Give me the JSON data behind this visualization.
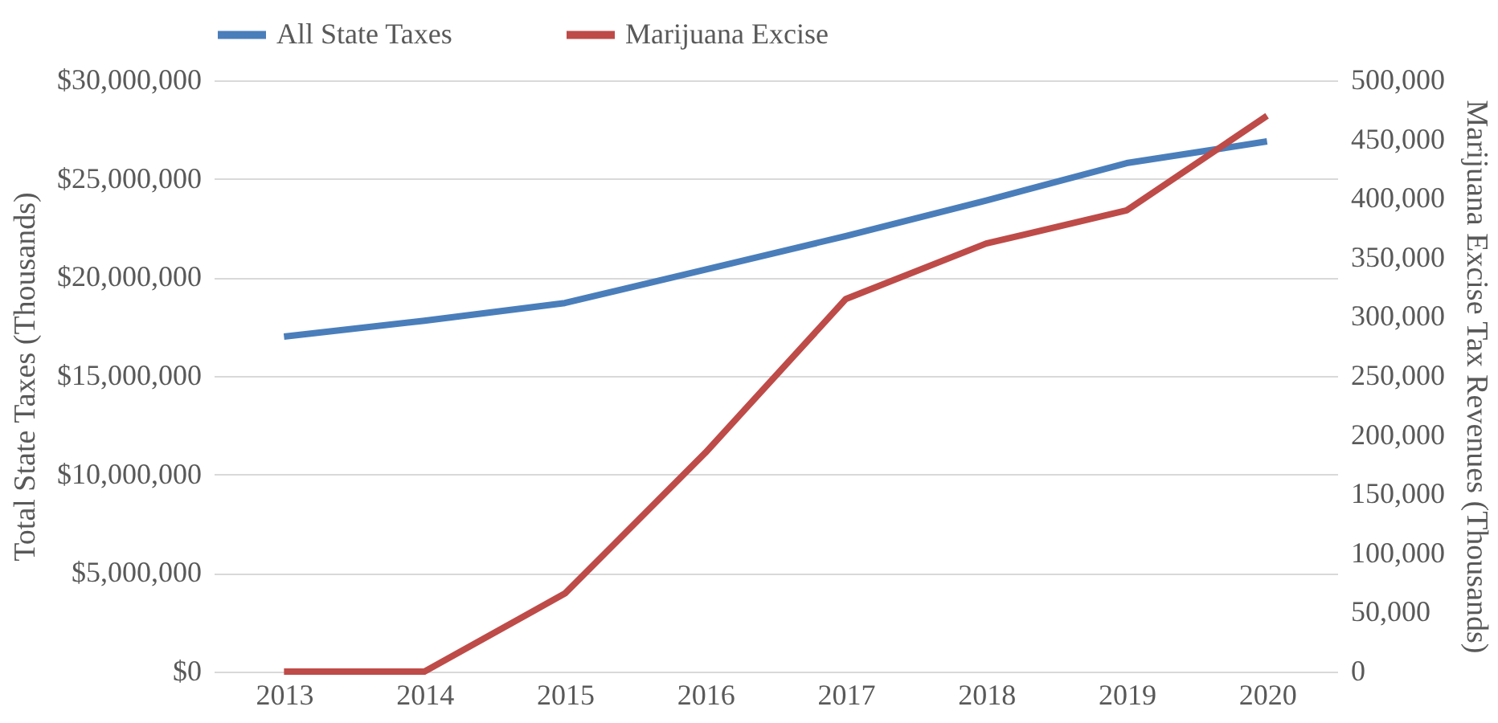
{
  "chart_data": {
    "type": "line",
    "categories": [
      "2013",
      "2014",
      "2015",
      "2016",
      "2017",
      "2018",
      "2019",
      "2020"
    ],
    "series": [
      {
        "name": "All State Taxes",
        "color": "#4a7ebb",
        "values": [
          17000000,
          17800000,
          18700000,
          20400000,
          22100000,
          23900000,
          25800000,
          26900000
        ]
      },
      {
        "name": "Marijuana Excise",
        "color": "#be4b48",
        "axis": "y2",
        "values": [
          0,
          0,
          66000,
          185000,
          315000,
          362000,
          390000,
          470000
        ]
      }
    ],
    "ylabel": "Total State Taxes (Thousands)",
    "y2label": "Marijuana Excise Tax Revenues (Thousands)",
    "ylim": [
      0,
      30000000
    ],
    "yticks": [
      {
        "value": 0,
        "label": "$0"
      },
      {
        "value": 5000000,
        "label": "$5,000,000"
      },
      {
        "value": 10000000,
        "label": "$10,000,000"
      },
      {
        "value": 15000000,
        "label": "$15,000,000"
      },
      {
        "value": 20000000,
        "label": "$20,000,000"
      },
      {
        "value": 25000000,
        "label": "$25,000,000"
      },
      {
        "value": 30000000,
        "label": "$30,000,000"
      }
    ],
    "y2lim": [
      0,
      500000
    ],
    "y2ticks": [
      0,
      {
        "value": 50000,
        "label": "50,000"
      },
      {
        "value": 100000,
        "label": "100,000"
      },
      {
        "value": 150000,
        "label": "150,000"
      },
      {
        "value": 200000,
        "label": "200,000"
      },
      {
        "value": 250000,
        "label": "250,000"
      },
      {
        "value": 300000,
        "label": "300,000"
      },
      {
        "value": 350000,
        "label": "350,000"
      },
      {
        "value": 400000,
        "label": "400,000"
      },
      {
        "value": 450000,
        "label": "450,000"
      },
      {
        "value": 500000,
        "label": "500,000"
      }
    ],
    "grid": "y",
    "legend": "top left",
    "marker": "none",
    "line_style": "solid"
  }
}
